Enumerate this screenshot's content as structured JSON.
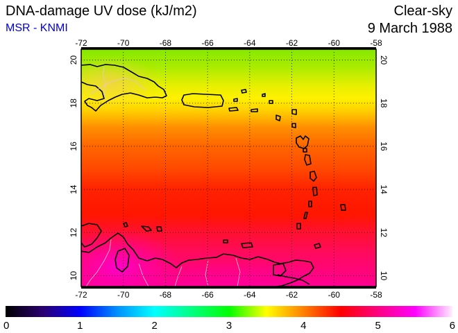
{
  "header": {
    "title": "DNA-damage UV dose (kJ/m2)",
    "organization": "MSR - KNMI",
    "sky_condition": "Clear-sky",
    "date": "9 March 1988"
  },
  "colors": {
    "organization_text": "#0000dd",
    "frame": "#000000"
  },
  "map": {
    "lon_range": [
      -72,
      -58
    ],
    "lat_range": [
      9.5,
      20.5
    ],
    "lon_ticks": [
      "-72",
      "-70",
      "-68",
      "-66",
      "-64",
      "-62",
      "-60",
      "-58"
    ],
    "lat_ticks": [
      "10",
      "12",
      "14",
      "16",
      "18",
      "20"
    ]
  },
  "colorbar": {
    "labels": [
      "0",
      "1",
      "2",
      "3",
      "4",
      "5",
      "6"
    ],
    "range": [
      0,
      6
    ],
    "stops": [
      {
        "v": 0.0,
        "c": "#000000"
      },
      {
        "v": 0.5,
        "c": "#2a0070"
      },
      {
        "v": 1.0,
        "c": "#0000ff"
      },
      {
        "v": 1.5,
        "c": "#0090ff"
      },
      {
        "v": 2.0,
        "c": "#00ffff"
      },
      {
        "v": 2.5,
        "c": "#00ff80"
      },
      {
        "v": 3.0,
        "c": "#00ff00"
      },
      {
        "v": 3.5,
        "c": "#ffff00"
      },
      {
        "v": 4.0,
        "c": "#ff8000"
      },
      {
        "v": 4.5,
        "c": "#ff0000"
      },
      {
        "v": 5.0,
        "c": "#ff0080"
      },
      {
        "v": 5.5,
        "c": "#ff00ff"
      },
      {
        "v": 6.0,
        "c": "#ffeeff"
      }
    ]
  },
  "field_gradient": [
    {
      "lat": 20.5,
      "color": "#86e800"
    },
    {
      "lat": 19.7,
      "color": "#a8ec00"
    },
    {
      "lat": 18.8,
      "color": "#e8ef00"
    },
    {
      "lat": 18.2,
      "color": "#fff000"
    },
    {
      "lat": 17.6,
      "color": "#ffcc00"
    },
    {
      "lat": 16.9,
      "color": "#ff9000"
    },
    {
      "lat": 16.0,
      "color": "#ff6600"
    },
    {
      "lat": 15.0,
      "color": "#ff4a00"
    },
    {
      "lat": 14.0,
      "color": "#ff2200"
    },
    {
      "lat": 12.8,
      "color": "#ff1500"
    },
    {
      "lat": 12.0,
      "color": "#ff1030"
    },
    {
      "lat": 11.0,
      "color": "#ff0a60"
    },
    {
      "lat": 9.5,
      "color": "#ff0090"
    }
  ]
}
